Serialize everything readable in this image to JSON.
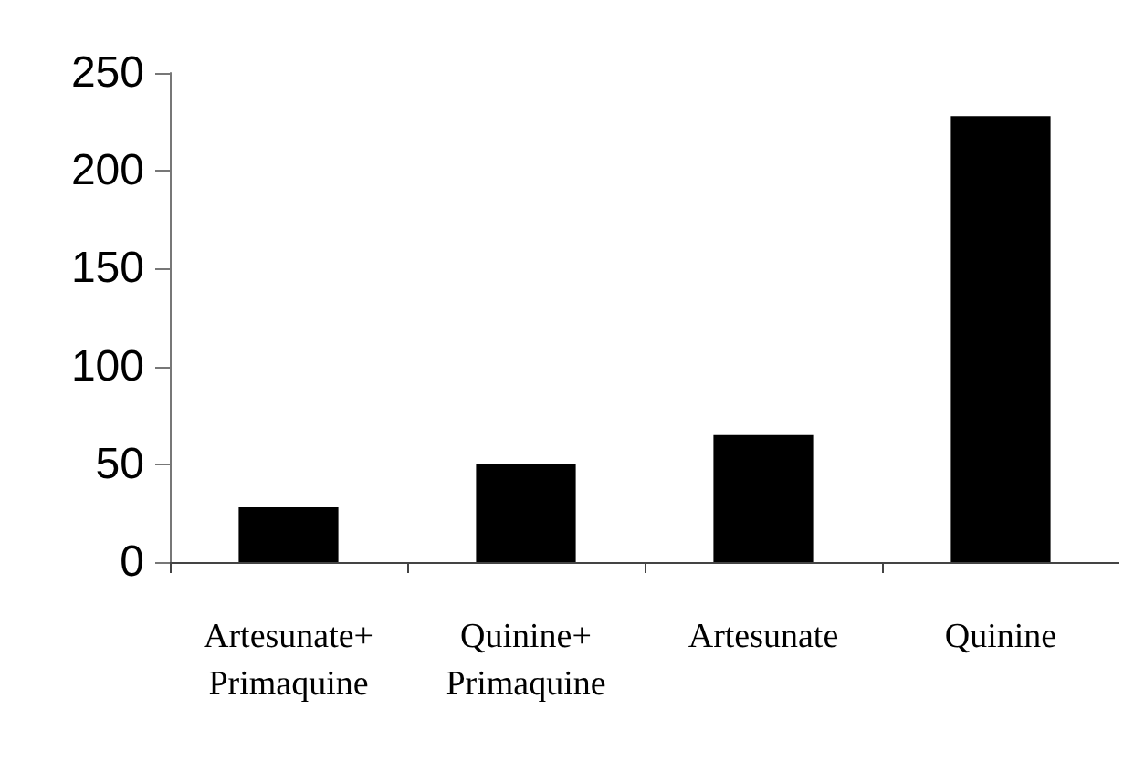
{
  "chart_data": {
    "type": "bar",
    "categories": [
      "Artesunate+\nPrimaquine",
      "Quinine+\nPrimaquine",
      "Artesunate",
      "Quinine"
    ],
    "values": [
      28,
      50,
      65,
      228
    ],
    "color": "#000000",
    "ylim": [
      0,
      250
    ],
    "yticks": [
      0,
      50,
      100,
      150,
      200,
      250
    ],
    "grid": false
  }
}
